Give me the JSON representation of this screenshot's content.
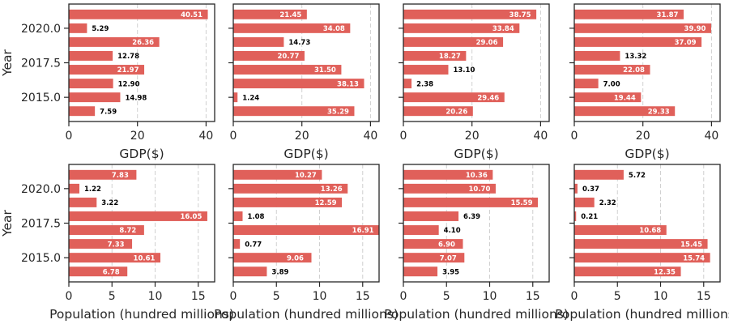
{
  "chart_data": {
    "type": "bar",
    "orientation": "horizontal",
    "bar_color": "#e0605a",
    "label_color_inside": "#ffffff",
    "label_color_outside": "#000000",
    "grid": "x, dashed",
    "y_axis": {
      "label": "Year",
      "ylim": [
        2013.25,
        2021.75
      ],
      "ticks": [
        2015.0,
        2017.5,
        2020.0
      ],
      "tick_labels": [
        "2015.0",
        "2017.5",
        "2020.0"
      ]
    },
    "y": [
      2014,
      2015,
      2016,
      2017,
      2018,
      2019,
      2020,
      2021
    ],
    "rows": [
      {
        "xlabel": "GDP($)",
        "xlim": [
          0,
          42.5
        ],
        "ticks": [
          0,
          20,
          40
        ],
        "tick_labels": [
          "0",
          "20",
          "40"
        ],
        "panels": [
          {
            "values": [
              7.59,
              14.98,
              12.9,
              21.97,
              12.78,
              26.36,
              5.29,
              40.51
            ],
            "labels": [
              "7.59",
              "14.98",
              "12.90",
              "21.97",
              "12.78",
              "26.36",
              "5.29",
              "40.51"
            ]
          },
          {
            "values": [
              35.29,
              1.24,
              38.13,
              31.5,
              20.77,
              14.73,
              34.08,
              21.45
            ],
            "labels": [
              "35.29",
              "1.24",
              "38.13",
              "31.50",
              "20.77",
              "14.73",
              "34.08",
              "21.45"
            ]
          },
          {
            "values": [
              20.26,
              29.46,
              2.38,
              13.1,
              18.27,
              29.06,
              33.84,
              38.75
            ],
            "labels": [
              "20.26",
              "29.46",
              "2.38",
              "13.10",
              "18.27",
              "29.06",
              "33.84",
              "38.75"
            ]
          },
          {
            "values": [
              29.33,
              19.44,
              7.0,
              22.08,
              13.32,
              37.09,
              39.9,
              31.87
            ],
            "labels": [
              "29.33",
              "19.44",
              "7.00",
              "22.08",
              "13.32",
              "37.09",
              "39.90",
              "31.87"
            ]
          }
        ]
      },
      {
        "xlabel": "Population (hundred millions)",
        "xlim": [
          0,
          16.9
        ],
        "ticks": [
          0,
          5,
          10,
          15
        ],
        "tick_labels": [
          "0",
          "5",
          "10",
          "15"
        ],
        "panels": [
          {
            "values": [
              6.78,
              10.61,
              7.33,
              8.72,
              16.05,
              3.22,
              1.22,
              7.83
            ],
            "labels": [
              "6.78",
              "10.61",
              "7.33",
              "8.72",
              "16.05",
              "3.22",
              "1.22",
              "7.83"
            ]
          },
          {
            "values": [
              3.89,
              9.06,
              0.77,
              16.91,
              1.08,
              12.59,
              13.26,
              10.27
            ],
            "labels": [
              "3.89",
              "9.06",
              "0.77",
              "16.91",
              "1.08",
              "12.59",
              "13.26",
              "10.27"
            ]
          },
          {
            "values": [
              3.95,
              7.07,
              6.9,
              4.1,
              6.39,
              15.59,
              10.7,
              10.36
            ],
            "labels": [
              "3.95",
              "7.07",
              "6.90",
              "4.10",
              "6.39",
              "15.59",
              "10.70",
              "10.36"
            ]
          },
          {
            "values": [
              12.35,
              15.74,
              15.45,
              10.68,
              0.21,
              2.32,
              0.37,
              5.72
            ],
            "labels": [
              "12.35",
              "15.74",
              "15.45",
              "10.68",
              "0.21",
              "2.32",
              "0.37",
              "5.72"
            ]
          }
        ]
      }
    ]
  }
}
